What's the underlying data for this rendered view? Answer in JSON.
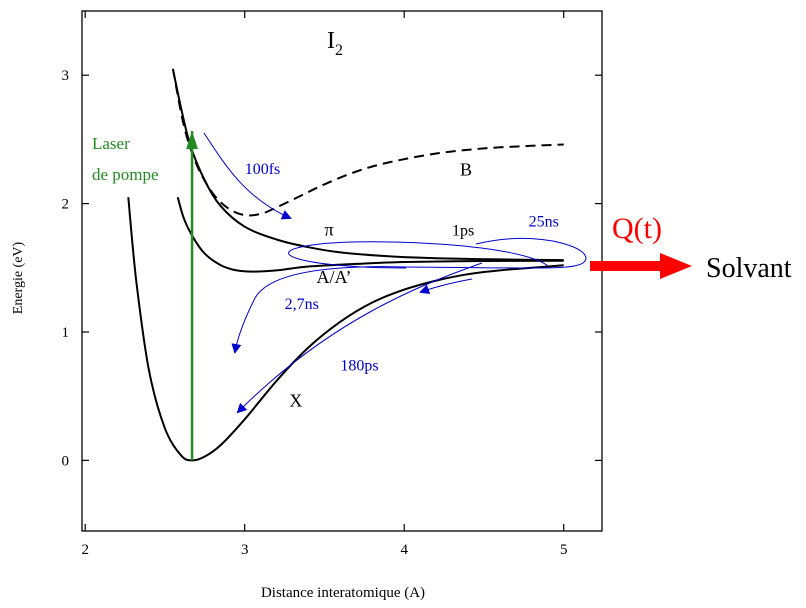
{
  "chart_data": {
    "type": "line",
    "title": "I",
    "title_subscript": "2",
    "xlabel": "Distance interatomique (A)",
    "ylabel": "Energie (eV)",
    "xlim": [
      1.98,
      5.24
    ],
    "ylim": [
      -0.55,
      3.5
    ],
    "x_ticks": [
      "2",
      "3",
      "4",
      "5"
    ],
    "y_ticks": [
      "0",
      "1",
      "2",
      "3"
    ],
    "x_tick_values": [
      2,
      3,
      4,
      5
    ],
    "y_tick_values": [
      0,
      1,
      2,
      3
    ],
    "grid": false,
    "series": [
      {
        "name": "X",
        "style": "solid",
        "color": "#000000",
        "x": [
          2.27,
          2.32,
          2.4,
          2.5,
          2.6,
          2.67,
          2.75,
          2.85,
          3.0,
          3.2,
          3.4,
          3.6,
          3.8,
          4.0,
          4.2,
          4.4,
          4.6,
          4.8,
          5.0
        ],
        "y": [
          2.05,
          1.4,
          0.7,
          0.25,
          0.04,
          0.0,
          0.03,
          0.12,
          0.32,
          0.62,
          0.88,
          1.08,
          1.23,
          1.33,
          1.4,
          1.45,
          1.48,
          1.5,
          1.52
        ]
      },
      {
        "name": "A/A’",
        "style": "solid",
        "color": "#000000",
        "x": [
          2.58,
          2.62,
          2.68,
          2.75,
          2.85,
          2.95,
          3.05,
          3.2,
          3.4,
          3.7,
          4.0,
          4.5,
          5.0
        ],
        "y": [
          2.05,
          1.88,
          1.73,
          1.61,
          1.52,
          1.48,
          1.47,
          1.48,
          1.51,
          1.53,
          1.545,
          1.553,
          1.555
        ]
      },
      {
        "name": "π",
        "style": "solid",
        "color": "#000000",
        "x": [
          2.55,
          2.6,
          2.66,
          2.75,
          2.85,
          3.0,
          3.2,
          3.4,
          3.6,
          3.9,
          4.2,
          4.6,
          5.0
        ],
        "y": [
          3.05,
          2.75,
          2.45,
          2.18,
          1.98,
          1.82,
          1.72,
          1.66,
          1.62,
          1.59,
          1.575,
          1.565,
          1.56
        ]
      },
      {
        "name": "B",
        "style": "dashed",
        "color": "#000000",
        "x": [
          2.55,
          2.62,
          2.7,
          2.8,
          2.9,
          3.0,
          3.1,
          3.2,
          3.35,
          3.5,
          3.7,
          3.9,
          4.2,
          4.5,
          4.8,
          5.0
        ],
        "y": [
          3.05,
          2.6,
          2.3,
          2.08,
          1.96,
          1.91,
          1.92,
          1.97,
          2.06,
          2.15,
          2.25,
          2.32,
          2.39,
          2.43,
          2.45,
          2.46
        ]
      }
    ],
    "curve_labels": [
      {
        "text": "X",
        "x": 3.28,
        "y": 0.42
      },
      {
        "text": "A/A’",
        "x": 3.45,
        "y": 1.38
      },
      {
        "text": "π",
        "x": 3.5,
        "y": 1.75
      },
      {
        "text": "B",
        "x": 4.35,
        "y": 2.22
      }
    ],
    "pump": {
      "label_line1": "Laser",
      "label_line2": "de pompe",
      "x": 2.67,
      "y_from": 0.0,
      "y_to": 2.58,
      "color": "#228B22"
    },
    "annotations": [
      {
        "text": "100fs",
        "x": 3.0,
        "y": 2.23,
        "color": "#0000CD"
      },
      {
        "text": "1ps",
        "x": 4.3,
        "y": 1.75,
        "color": "#000000"
      },
      {
        "text": "25ns",
        "x": 4.78,
        "y": 1.82,
        "color": "#0000CD"
      },
      {
        "text": "2,7ns",
        "x": 3.25,
        "y": 1.18,
        "color": "#0000CD"
      },
      {
        "text": "180ps",
        "x": 3.6,
        "y": 0.7,
        "color": "#0000CD"
      }
    ],
    "solvent": {
      "heat_label": "Q(t)",
      "label": "Solvant",
      "heat_color": "#FF0000"
    }
  }
}
